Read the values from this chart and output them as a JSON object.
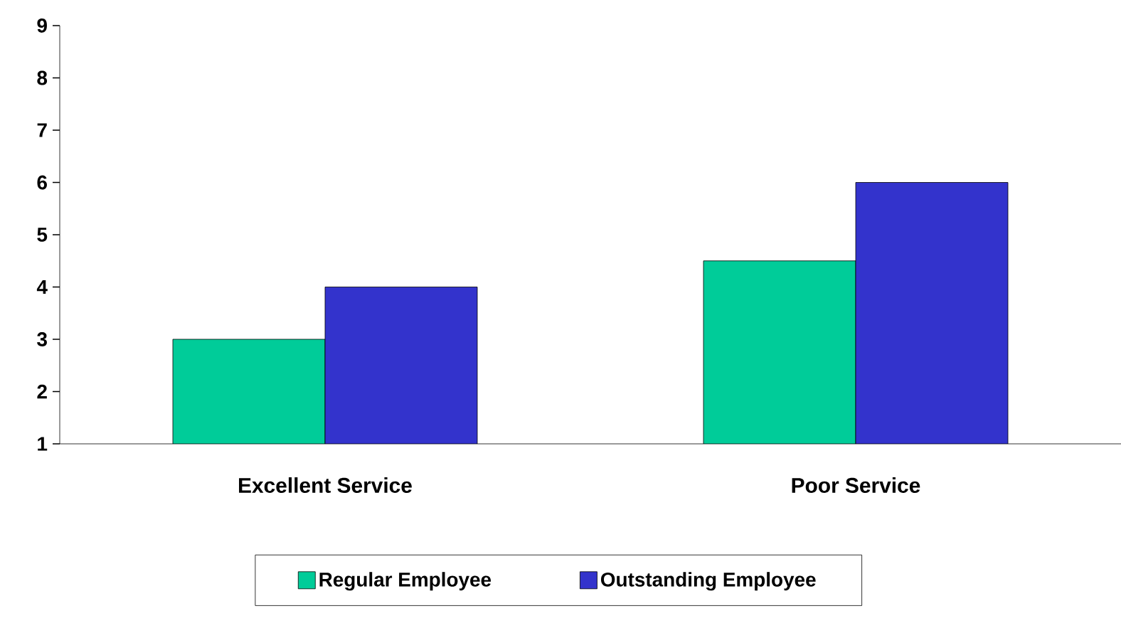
{
  "chart_data": {
    "type": "bar",
    "categories": [
      "Excellent Service",
      "Poor Service"
    ],
    "series": [
      {
        "name": "Regular Employee",
        "color": "#00cc99",
        "values": [
          3,
          4.5
        ]
      },
      {
        "name": "Outstanding Employee",
        "color": "#3333cc",
        "values": [
          4,
          6
        ]
      }
    ],
    "ylim": [
      1,
      9
    ],
    "yticks": [
      1,
      2,
      3,
      4,
      5,
      6,
      7,
      8,
      9
    ],
    "grid": false,
    "legend": "bottom"
  }
}
